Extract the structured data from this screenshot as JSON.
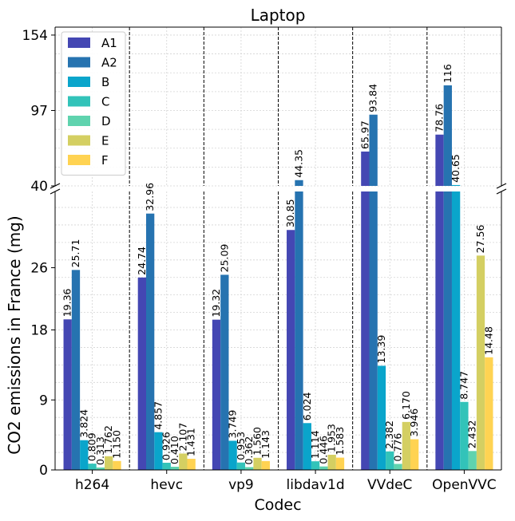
{
  "chart_data": {
    "type": "bar",
    "title": "Laptop",
    "xlabel": "Codec",
    "ylabel": "CO2 emissions in France (mg)",
    "categories": [
      "h264",
      "hevc",
      "vp9",
      "libdav1d",
      "VVdeC",
      "OpenVVC"
    ],
    "broken_axis": true,
    "lower_ylim": [
      0,
      35.8
    ],
    "upper_ylim": [
      40,
      160
    ],
    "lower_yticks": [
      "0",
      "9",
      "18",
      "26"
    ],
    "upper_yticks": [
      "40",
      "97",
      "154"
    ],
    "grid": true,
    "legend_position": "top-left",
    "series": [
      {
        "name": "A1",
        "color": "#4447b3",
        "values": [
          19.36,
          24.74,
          19.32,
          30.85,
          65.97,
          78.76
        ],
        "labels": [
          "19.36",
          "24.74",
          "19.32",
          "30.85",
          "65.97",
          "78.76"
        ]
      },
      {
        "name": "A2",
        "color": "#2673b0",
        "values": [
          25.71,
          32.96,
          25.09,
          44.35,
          93.84,
          116
        ],
        "labels": [
          "25.71",
          "32.96",
          "25.09",
          "44.35",
          "93.84",
          "116"
        ]
      },
      {
        "name": "B",
        "color": "#0aa5cb",
        "values": [
          3.824,
          4.857,
          3.749,
          6.024,
          13.39,
          40.65
        ],
        "labels": [
          "3.824",
          "4.857",
          "3.749",
          "6.024",
          "13.39",
          "40.65"
        ]
      },
      {
        "name": "C",
        "color": "#32c3b9",
        "values": [
          0.809,
          0.926,
          0.953,
          1.114,
          2.382,
          8.747
        ],
        "labels": [
          "0.809",
          "0.926",
          "0.953",
          "1.114",
          "2.382",
          "8.747"
        ]
      },
      {
        "name": "D",
        "color": "#5fd3ae",
        "values": [
          0.313,
          0.41,
          0.362,
          0.446,
          0.776,
          2.432
        ],
        "labels": [
          "0.313",
          "0.410",
          "0.362",
          "0.446",
          "0.776",
          "2.432"
        ]
      },
      {
        "name": "E",
        "color": "#d4cf62",
        "values": [
          1.762,
          2.107,
          1.56,
          1.953,
          6.17,
          27.56
        ],
        "labels": [
          "1.762",
          "2.107",
          "1.560",
          "1.953",
          "6.170",
          "27.56"
        ]
      },
      {
        "name": "F",
        "color": "#ffd352",
        "values": [
          1.15,
          1.431,
          1.143,
          1.583,
          3.946,
          14.48
        ],
        "labels": [
          "1.150",
          "1.431",
          "1.143",
          "1.583",
          "3.946",
          "14.48"
        ]
      }
    ]
  }
}
